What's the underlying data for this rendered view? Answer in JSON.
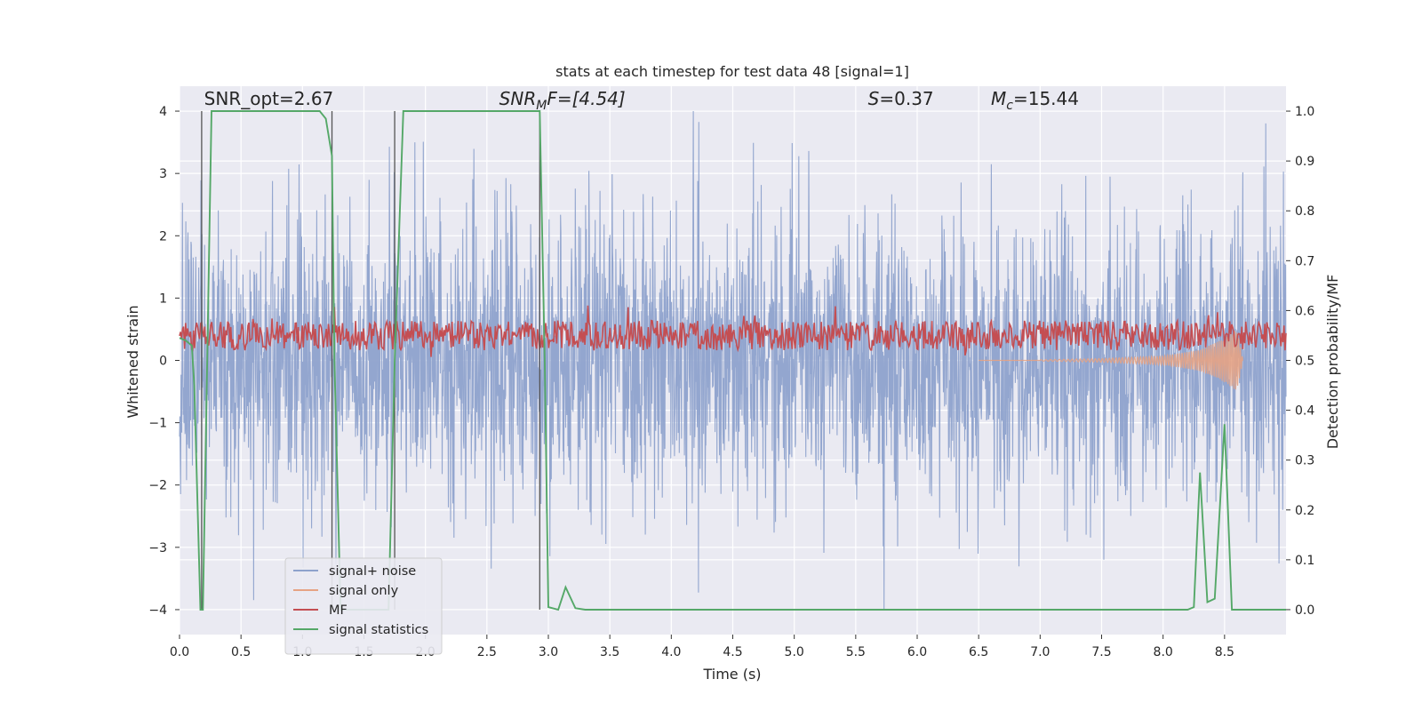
{
  "chart_data": {
    "type": "line",
    "title": "stats at each timestep for test data 48 [signal=1]",
    "xlabel": "Time (s)",
    "ylabel_left": "Whitened strain",
    "ylabel_right": "Detection probability/MF",
    "xlim": [
      0.0,
      9.0
    ],
    "ylim_left": [
      -4.4,
      4.4
    ],
    "ylim_right": [
      -0.05,
      1.05
    ],
    "x_ticks": [
      0.0,
      0.5,
      1.0,
      1.5,
      2.0,
      2.5,
      3.0,
      3.5,
      4.0,
      4.5,
      5.0,
      5.5,
      6.0,
      6.5,
      7.0,
      7.5,
      8.0,
      8.5
    ],
    "x_tick_labels": [
      "0.0",
      "0.5",
      "1.0",
      "1.5",
      "2.0",
      "2.5",
      "3.0",
      "3.5",
      "4.0",
      "4.5",
      "5.0",
      "5.5",
      "6.0",
      "6.5",
      "7.0",
      "7.5",
      "8.0",
      "8.5"
    ],
    "y_ticks_left": [
      -4,
      -3,
      -2,
      -1,
      0,
      1,
      2,
      3,
      4
    ],
    "y_tick_labels_left": [
      "−4",
      "−3",
      "−2",
      "−1",
      "0",
      "1",
      "2",
      "3",
      "4"
    ],
    "y_ticks_right": [
      0.0,
      0.1,
      0.2,
      0.3,
      0.4,
      0.5,
      0.6,
      0.7,
      0.8,
      0.9,
      1.0
    ],
    "y_tick_labels_right": [
      "0.0",
      "0.1",
      "0.2",
      "0.3",
      "0.4",
      "0.5",
      "0.6",
      "0.7",
      "0.8",
      "0.9",
      "1.0"
    ],
    "grid": true,
    "legend_position": "lower-left",
    "annotations": [
      {
        "label": "SNR_opt=2.67",
        "base": "SNR_opt=2.67",
        "sub": "",
        "tail": "",
        "x": 0.2,
        "y": 4.1
      },
      {
        "label": "SNR_MF=[4.54]",
        "base": "SNR",
        "sub": "M",
        "tail": "F=[4.54]",
        "x": 2.6,
        "y": 4.1
      },
      {
        "label": "S=0.37",
        "base": "S",
        "sub": "",
        "tail": "=0.37",
        "x": 5.6,
        "y": 4.1
      },
      {
        "label": "M_c=15.44",
        "base": "M",
        "sub": "c",
        "tail": "=15.44",
        "x": 6.6,
        "y": 4.1
      }
    ],
    "vertical_lines_x": [
      0.18,
      1.24,
      1.75,
      2.93
    ],
    "series": [
      {
        "name": "signal+ noise",
        "axis": "left",
        "color": "#8ea2cc",
        "style": "dense noise, amplitude roughly ±3.5 (peaks to ±4.0)",
        "noise_amplitude": 1.1,
        "x_range": [
          0.0,
          9.0
        ]
      },
      {
        "name": "signal only",
        "axis": "left",
        "color": "#e6a384",
        "style": "chirp oscillation growing to about ±0.5 near t=8.6 s",
        "x": [
          7.0,
          7.5,
          8.0,
          8.3,
          8.5,
          8.6,
          8.65
        ],
        "envelope": [
          0.01,
          0.03,
          0.07,
          0.17,
          0.35,
          0.5,
          0.0
        ]
      },
      {
        "name": "MF",
        "axis": "right",
        "color": "#c44e52",
        "style": "noisy trace around 0.55 on right axis",
        "mean": 0.55,
        "spread": 0.03,
        "max_spikes": 0.62
      },
      {
        "name": "signal statistics",
        "axis": "right",
        "color": "#55a868",
        "x": [
          0.0,
          0.05,
          0.1,
          0.12,
          0.17,
          0.19,
          0.26,
          0.28,
          1.0,
          1.14,
          1.19,
          1.24,
          1.26,
          1.31,
          1.36,
          1.7,
          1.75,
          1.82,
          2.93,
          2.97,
          3.0,
          3.08,
          3.14,
          3.22,
          3.3,
          8.2,
          8.25,
          8.3,
          8.36,
          8.42,
          8.5,
          8.56,
          8.6,
          9.0
        ],
        "y": [
          0.545,
          0.54,
          0.53,
          0.45,
          0.0,
          0.0,
          1.0,
          1.0,
          1.0,
          1.0,
          0.985,
          0.91,
          0.5,
          0.0,
          0.0,
          0.0,
          0.5,
          1.0,
          1.0,
          0.5,
          0.005,
          0.0,
          0.045,
          0.003,
          0.0,
          0.0,
          0.005,
          0.275,
          0.015,
          0.022,
          0.372,
          0.0,
          0.0,
          0.0
        ]
      }
    ]
  }
}
